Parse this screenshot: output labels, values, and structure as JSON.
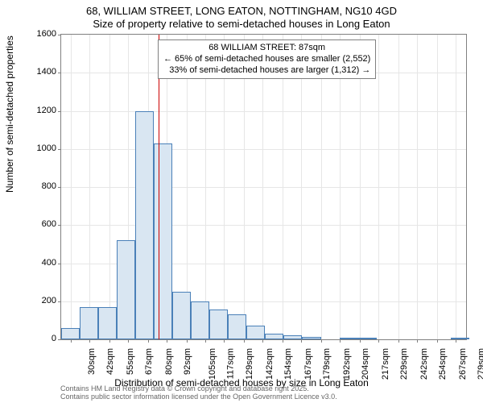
{
  "title_line1": "68, WILLIAM STREET, LONG EATON, NOTTINGHAM, NG10 4GD",
  "title_line2": "Size of property relative to semi-detached houses in Long Eaton",
  "ylabel": "Number of semi-detached properties",
  "xlabel": "Distribution of semi-detached houses by size in Long Eaton",
  "annotation": {
    "line1": "68 WILLIAM STREET: 87sqm",
    "line2": "← 65% of semi-detached houses are smaller (2,552)",
    "line3": "33% of semi-detached houses are larger (1,312) →"
  },
  "chart": {
    "type": "histogram",
    "background_color": "#ffffff",
    "grid_color": "#e6e6e6",
    "border_color": "#808080",
    "bar_fill": "#d9e6f2",
    "bar_border": "#4a80b8",
    "marker_color": "#cc0000",
    "marker_x": 87,
    "x_min": 24,
    "x_max": 286,
    "x_ticks": [
      30,
      42,
      55,
      67,
      80,
      92,
      105,
      117,
      129,
      142,
      154,
      167,
      179,
      192,
      204,
      217,
      229,
      242,
      254,
      267,
      279
    ],
    "x_tick_suffix": "sqm",
    "y_min": 0,
    "y_max": 1600,
    "y_ticks": [
      0,
      200,
      400,
      600,
      800,
      1000,
      1200,
      1400,
      1600
    ],
    "bins": [
      {
        "x": 24,
        "w": 12,
        "v": 60
      },
      {
        "x": 36,
        "w": 12,
        "v": 170
      },
      {
        "x": 48,
        "w": 12,
        "v": 170
      },
      {
        "x": 60,
        "w": 12,
        "v": 520
      },
      {
        "x": 72,
        "w": 12,
        "v": 1200
      },
      {
        "x": 84,
        "w": 12,
        "v": 1030
      },
      {
        "x": 96,
        "w": 12,
        "v": 250
      },
      {
        "x": 108,
        "w": 12,
        "v": 200
      },
      {
        "x": 120,
        "w": 12,
        "v": 155
      },
      {
        "x": 132,
        "w": 12,
        "v": 130
      },
      {
        "x": 144,
        "w": 12,
        "v": 70
      },
      {
        "x": 156,
        "w": 12,
        "v": 30
      },
      {
        "x": 168,
        "w": 12,
        "v": 20
      },
      {
        "x": 180,
        "w": 12,
        "v": 12
      },
      {
        "x": 192,
        "w": 12,
        "v": 0
      },
      {
        "x": 204,
        "w": 12,
        "v": 5
      },
      {
        "x": 216,
        "w": 12,
        "v": 3
      },
      {
        "x": 228,
        "w": 12,
        "v": 0
      },
      {
        "x": 240,
        "w": 12,
        "v": 0
      },
      {
        "x": 252,
        "w": 12,
        "v": 0
      },
      {
        "x": 264,
        "w": 12,
        "v": 0
      },
      {
        "x": 276,
        "w": 12,
        "v": 2
      }
    ]
  },
  "footer_line1": "Contains HM Land Registry data © Crown copyright and database right 2025.",
  "footer_line2": "Contains public sector information licensed under the Open Government Licence v3.0."
}
